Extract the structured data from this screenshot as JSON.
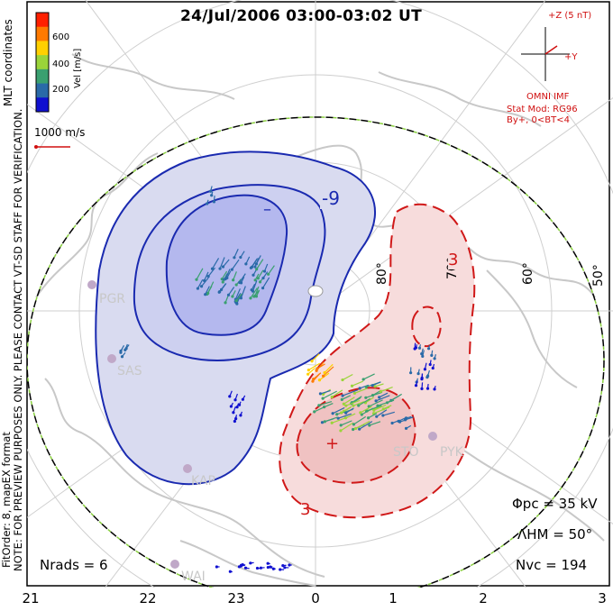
{
  "title": "24/Jul/2006 03:00-03:02 UT",
  "coordinate_label": "MLT coordinates",
  "velocity_scale": {
    "label": "Vel [m/s]",
    "ticks": [
      "600",
      "400",
      "200"
    ],
    "colors": [
      "#ff2000",
      "#ff7a00",
      "#ffd000",
      "#9ad43a",
      "#3aa070",
      "#2a6aa8",
      "#1010d0"
    ]
  },
  "reference_vector_label": "1000 m/s",
  "imf": {
    "z_label": "+Z (5 nT)",
    "y_label": "+Y",
    "source": "OMNI IMF",
    "model": "Stat Mod: RG96",
    "condition": "By+, 0<BT<4"
  },
  "latitude_labels": [
    "80°",
    "70°",
    "60°",
    "50°"
  ],
  "contours": {
    "negative_label": "-9",
    "negative_min_label": "–",
    "positive_label": "3",
    "positive_max_label": "+"
  },
  "stations": [
    "PGR",
    "SAS",
    "KAP",
    "STO",
    "PYK",
    "WAI"
  ],
  "side_notes": {
    "preview": "NOTE: FOR PREVIEW PURPOSES ONLY. PLEASE CONTACT VT-SD STAFF FOR VERIFICATION.",
    "fit": "FitOrder: 8, mapEX format"
  },
  "stats": {
    "phi_pc": "Φpc = 35 kV",
    "lambda_hm": "ΛHM = 50°",
    "n_vc": "Nvc = 194",
    "n_rads": "Nrads = 6"
  },
  "mlt_ticks": [
    "21",
    "22",
    "23",
    "0",
    "1",
    "2",
    "3"
  ],
  "colors": {
    "negative_cell_fill": "#d9dbf0",
    "negative_cell_core": "#b4b8ee",
    "negative_line": "#1a2ab0",
    "positive_cell_fill": "#f7dcdc",
    "positive_cell_core": "#f0c2c2",
    "positive_line": "#d01818",
    "coast": "#c8c8c8",
    "boundary_green": "#8ad040"
  }
}
